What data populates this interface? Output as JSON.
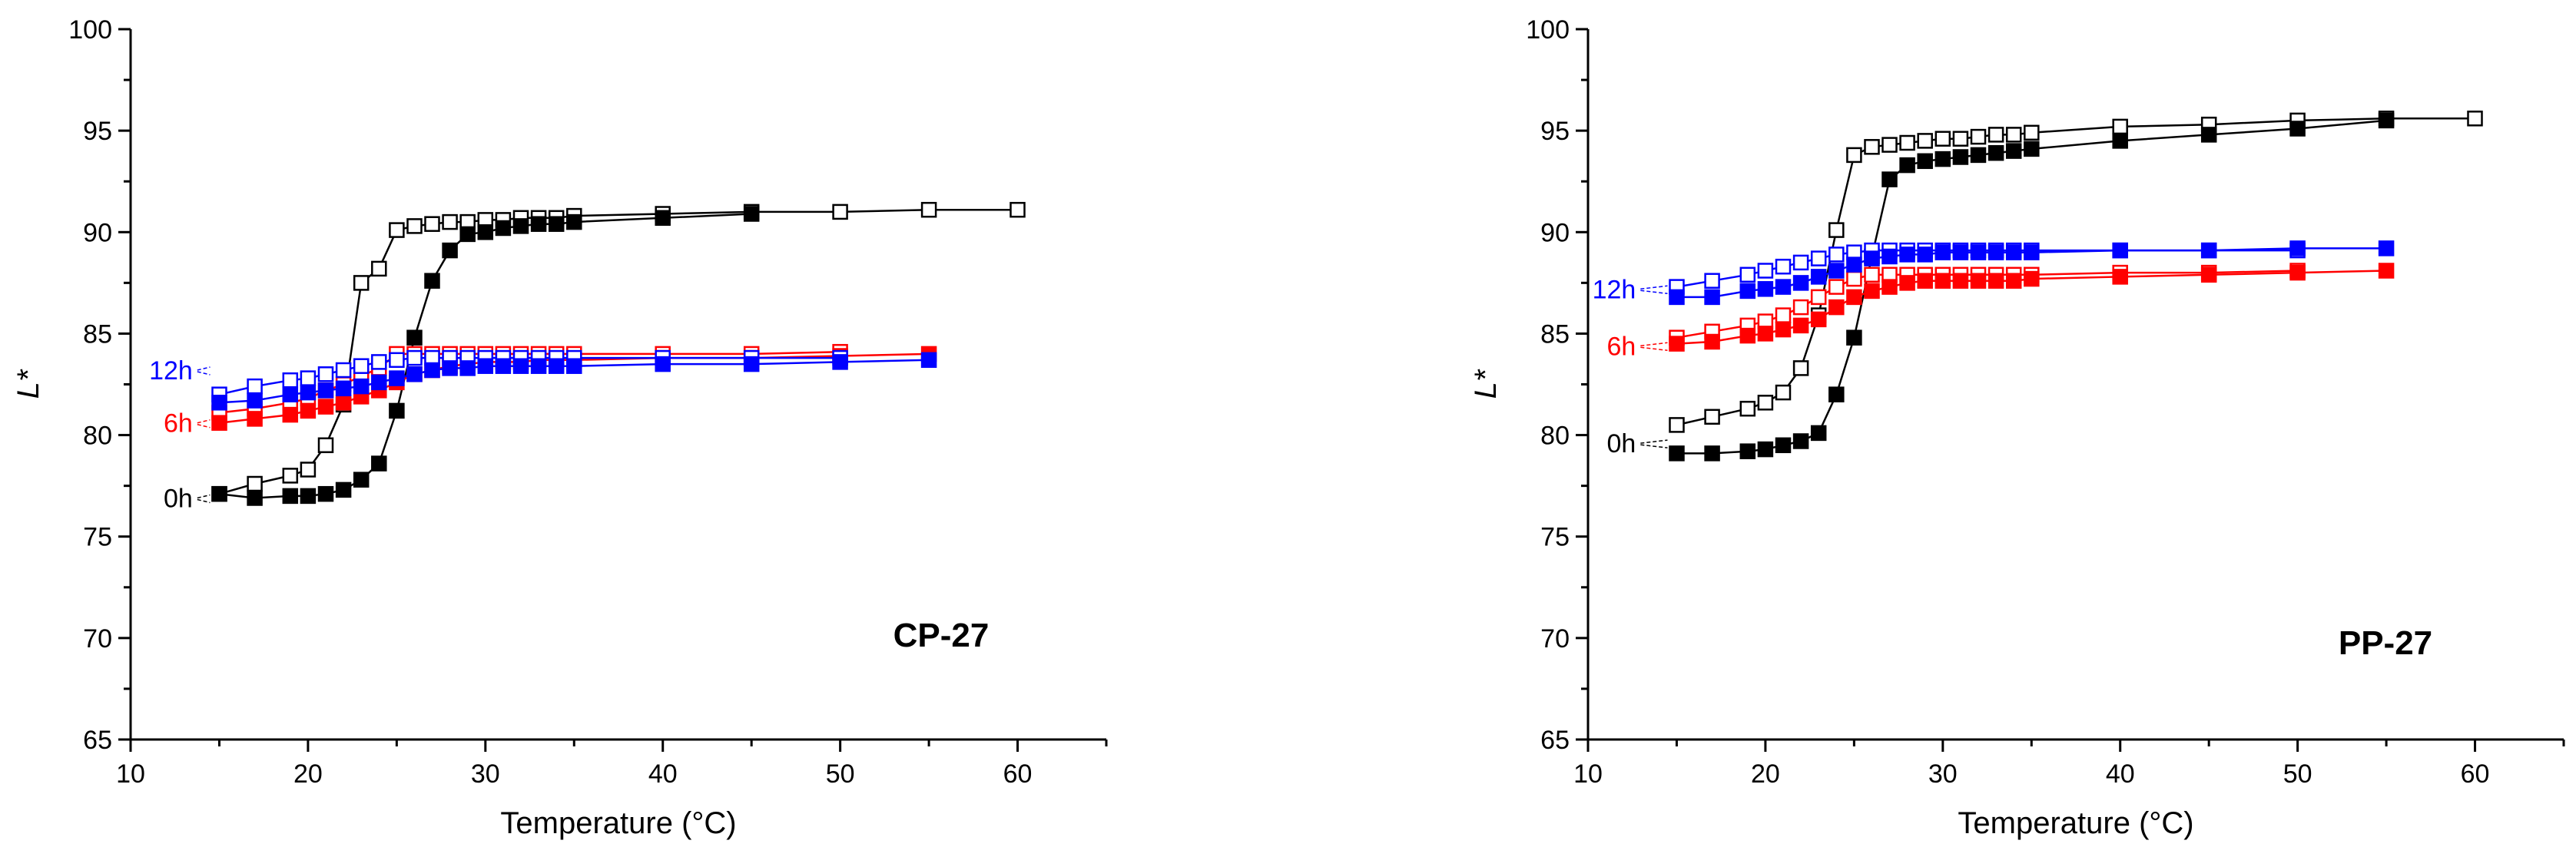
{
  "colors": {
    "axis": "#000000",
    "black": "#000000",
    "red": "#ff0000",
    "blue": "#0000ff",
    "background": "#ffffff"
  },
  "chart_data": [
    {
      "type": "scatter",
      "title": "CP-27",
      "xlabel": "Temperature (°C)",
      "ylabel": "L*",
      "xlim": [
        10,
        65
      ],
      "ylim": [
        65,
        100
      ],
      "x_ticks": [
        10,
        20,
        30,
        40,
        50,
        60
      ],
      "y_ticks": [
        65,
        70,
        75,
        80,
        85,
        90,
        95,
        100
      ],
      "grid": false,
      "series_labels": [
        {
          "text": "12h",
          "color": "#0000ff",
          "at": [
            13.5,
            83.2
          ]
        },
        {
          "text": "6h",
          "color": "#ff0000",
          "at": [
            13.5,
            80.6
          ]
        },
        {
          "text": "0h",
          "color": "#000000",
          "at": [
            13.5,
            76.9
          ]
        }
      ],
      "series": [
        {
          "color": "#000000",
          "marker": "open-square",
          "x": [
            15,
            17,
            19,
            20,
            21,
            22,
            23,
            24,
            25,
            26,
            27,
            28,
            29,
            30,
            31,
            32,
            33,
            34,
            35,
            40,
            45,
            50,
            55,
            60
          ],
          "y": [
            77.1,
            77.6,
            78,
            78.3,
            79.5,
            81.5,
            87.5,
            88.2,
            90.1,
            90.3,
            90.4,
            90.5,
            90.5,
            90.6,
            90.6,
            90.7,
            90.7,
            90.7,
            90.8,
            90.9,
            91,
            91,
            91.1,
            91.1
          ]
        },
        {
          "color": "#000000",
          "marker": "filled-square",
          "x": [
            15,
            17,
            19,
            20,
            21,
            22,
            23,
            24,
            25,
            26,
            27,
            28,
            29,
            30,
            31,
            32,
            33,
            34,
            35,
            40,
            45
          ],
          "y": [
            77.1,
            76.9,
            77,
            77,
            77.1,
            77.3,
            77.8,
            78.6,
            81.2,
            84.8,
            87.6,
            89.1,
            89.9,
            90,
            90.2,
            90.3,
            90.4,
            90.4,
            90.5,
            90.7,
            90.9
          ]
        },
        {
          "color": "#ff0000",
          "marker": "open-square",
          "x": [
            15,
            17,
            19,
            20,
            21,
            22,
            23,
            24,
            25,
            26,
            27,
            28,
            29,
            30,
            31,
            32,
            33,
            34,
            35,
            40,
            45,
            50
          ],
          "y": [
            81.1,
            81.3,
            81.6,
            81.8,
            82.2,
            82.5,
            82.9,
            83.3,
            84,
            84,
            84,
            84,
            84,
            84,
            84,
            84,
            84,
            84,
            84,
            84,
            84,
            84.1
          ]
        },
        {
          "color": "#ff0000",
          "marker": "filled-square",
          "x": [
            15,
            17,
            19,
            20,
            21,
            22,
            23,
            24,
            25,
            26,
            27,
            28,
            29,
            30,
            31,
            32,
            33,
            34,
            35,
            40,
            45,
            50,
            55
          ],
          "y": [
            80.6,
            80.8,
            81,
            81.2,
            81.4,
            81.6,
            81.9,
            82.2,
            82.6,
            83,
            83.2,
            83.4,
            83.5,
            83.6,
            83.6,
            83.6,
            83.7,
            83.7,
            83.7,
            83.8,
            83.8,
            83.9,
            84
          ]
        },
        {
          "color": "#0000ff",
          "marker": "open-square",
          "x": [
            15,
            17,
            19,
            20,
            21,
            22,
            23,
            24,
            25,
            26,
            27,
            28,
            29,
            30,
            31,
            32,
            33,
            34,
            35,
            40,
            45,
            50
          ],
          "y": [
            82,
            82.4,
            82.7,
            82.8,
            83,
            83.2,
            83.4,
            83.6,
            83.7,
            83.8,
            83.8,
            83.8,
            83.8,
            83.8,
            83.8,
            83.8,
            83.8,
            83.8,
            83.8,
            83.8,
            83.8,
            83.8
          ]
        },
        {
          "color": "#0000ff",
          "marker": "filled-square",
          "x": [
            15,
            17,
            19,
            20,
            21,
            22,
            23,
            24,
            25,
            26,
            27,
            28,
            29,
            30,
            31,
            32,
            33,
            34,
            35,
            40,
            45,
            50,
            55
          ],
          "y": [
            81.6,
            81.7,
            82,
            82.1,
            82.2,
            82.3,
            82.4,
            82.6,
            82.8,
            83,
            83.2,
            83.3,
            83.3,
            83.4,
            83.4,
            83.4,
            83.4,
            83.4,
            83.4,
            83.5,
            83.5,
            83.6,
            83.7
          ]
        }
      ]
    },
    {
      "type": "scatter",
      "title": "PP-27",
      "xlabel": "Temperature (°C)",
      "ylabel": "L*",
      "xlim": [
        10,
        65
      ],
      "ylim": [
        65,
        100
      ],
      "x_ticks": [
        10,
        20,
        30,
        40,
        50,
        60
      ],
      "y_ticks": [
        65,
        70,
        75,
        80,
        85,
        90,
        95,
        100
      ],
      "grid": false,
      "series_labels": [
        {
          "text": "12h",
          "color": "#0000ff",
          "at": [
            12.7,
            87.2
          ]
        },
        {
          "text": "6h",
          "color": "#ff0000",
          "at": [
            12.7,
            84.4
          ]
        },
        {
          "text": "0h",
          "color": "#000000",
          "at": [
            12.7,
            79.6
          ]
        }
      ],
      "series": [
        {
          "color": "#000000",
          "marker": "open-square",
          "x": [
            15,
            17,
            19,
            20,
            21,
            22,
            23,
            24,
            25,
            26,
            27,
            28,
            29,
            30,
            31,
            32,
            33,
            34,
            35,
            40,
            45,
            50,
            55,
            60
          ],
          "y": [
            80.5,
            80.9,
            81.3,
            81.6,
            82.1,
            83.3,
            85.9,
            90.1,
            93.8,
            94.2,
            94.3,
            94.4,
            94.5,
            94.6,
            94.6,
            94.7,
            94.8,
            94.8,
            94.9,
            95.2,
            95.3,
            95.5,
            95.6,
            95.6
          ]
        },
        {
          "color": "#000000",
          "marker": "filled-square",
          "x": [
            15,
            17,
            19,
            20,
            21,
            22,
            23,
            24,
            25,
            26,
            27,
            28,
            29,
            30,
            31,
            32,
            33,
            34,
            35,
            40,
            45,
            50,
            55
          ],
          "y": [
            79.1,
            79.1,
            79.2,
            79.3,
            79.5,
            79.7,
            80.1,
            82,
            84.8,
            88.8,
            92.6,
            93.3,
            93.5,
            93.6,
            93.7,
            93.8,
            93.9,
            94,
            94.1,
            94.5,
            94.8,
            95.1,
            95.5
          ]
        },
        {
          "color": "#ff0000",
          "marker": "open-square",
          "x": [
            15,
            17,
            19,
            20,
            21,
            22,
            23,
            24,
            25,
            26,
            27,
            28,
            29,
            30,
            31,
            32,
            33,
            34,
            35,
            40,
            45,
            50
          ],
          "y": [
            84.8,
            85.1,
            85.4,
            85.6,
            85.9,
            86.3,
            86.8,
            87.3,
            87.7,
            87.9,
            87.9,
            87.9,
            87.9,
            87.9,
            87.9,
            87.9,
            87.9,
            87.9,
            87.9,
            88,
            88,
            88.1
          ]
        },
        {
          "color": "#ff0000",
          "marker": "filled-square",
          "x": [
            15,
            17,
            19,
            20,
            21,
            22,
            23,
            24,
            25,
            26,
            27,
            28,
            29,
            30,
            31,
            32,
            33,
            34,
            35,
            40,
            45,
            50,
            55
          ],
          "y": [
            84.5,
            84.6,
            84.9,
            85,
            85.2,
            85.4,
            85.7,
            86.3,
            86.8,
            87.1,
            87.3,
            87.5,
            87.6,
            87.6,
            87.6,
            87.6,
            87.6,
            87.6,
            87.7,
            87.8,
            87.9,
            88,
            88.1
          ]
        },
        {
          "color": "#0000ff",
          "marker": "open-square",
          "x": [
            15,
            17,
            19,
            20,
            21,
            22,
            23,
            24,
            25,
            26,
            27,
            28,
            29,
            30,
            31,
            32,
            33,
            34,
            35,
            40,
            45,
            50
          ],
          "y": [
            87.3,
            87.6,
            87.9,
            88.1,
            88.3,
            88.5,
            88.7,
            88.9,
            89,
            89.1,
            89.1,
            89.1,
            89.1,
            89.1,
            89.1,
            89.1,
            89.1,
            89.1,
            89.1,
            89.1,
            89.1,
            89.1
          ]
        },
        {
          "color": "#0000ff",
          "marker": "filled-square",
          "x": [
            15,
            17,
            19,
            20,
            21,
            22,
            23,
            24,
            25,
            26,
            27,
            28,
            29,
            30,
            31,
            32,
            33,
            34,
            35,
            40,
            45,
            50,
            55
          ],
          "y": [
            86.8,
            86.8,
            87.1,
            87.2,
            87.3,
            87.5,
            87.8,
            88.1,
            88.4,
            88.7,
            88.8,
            88.9,
            88.9,
            89,
            89,
            89,
            89,
            89,
            89,
            89.1,
            89.1,
            89.2,
            89.2
          ]
        }
      ]
    }
  ]
}
